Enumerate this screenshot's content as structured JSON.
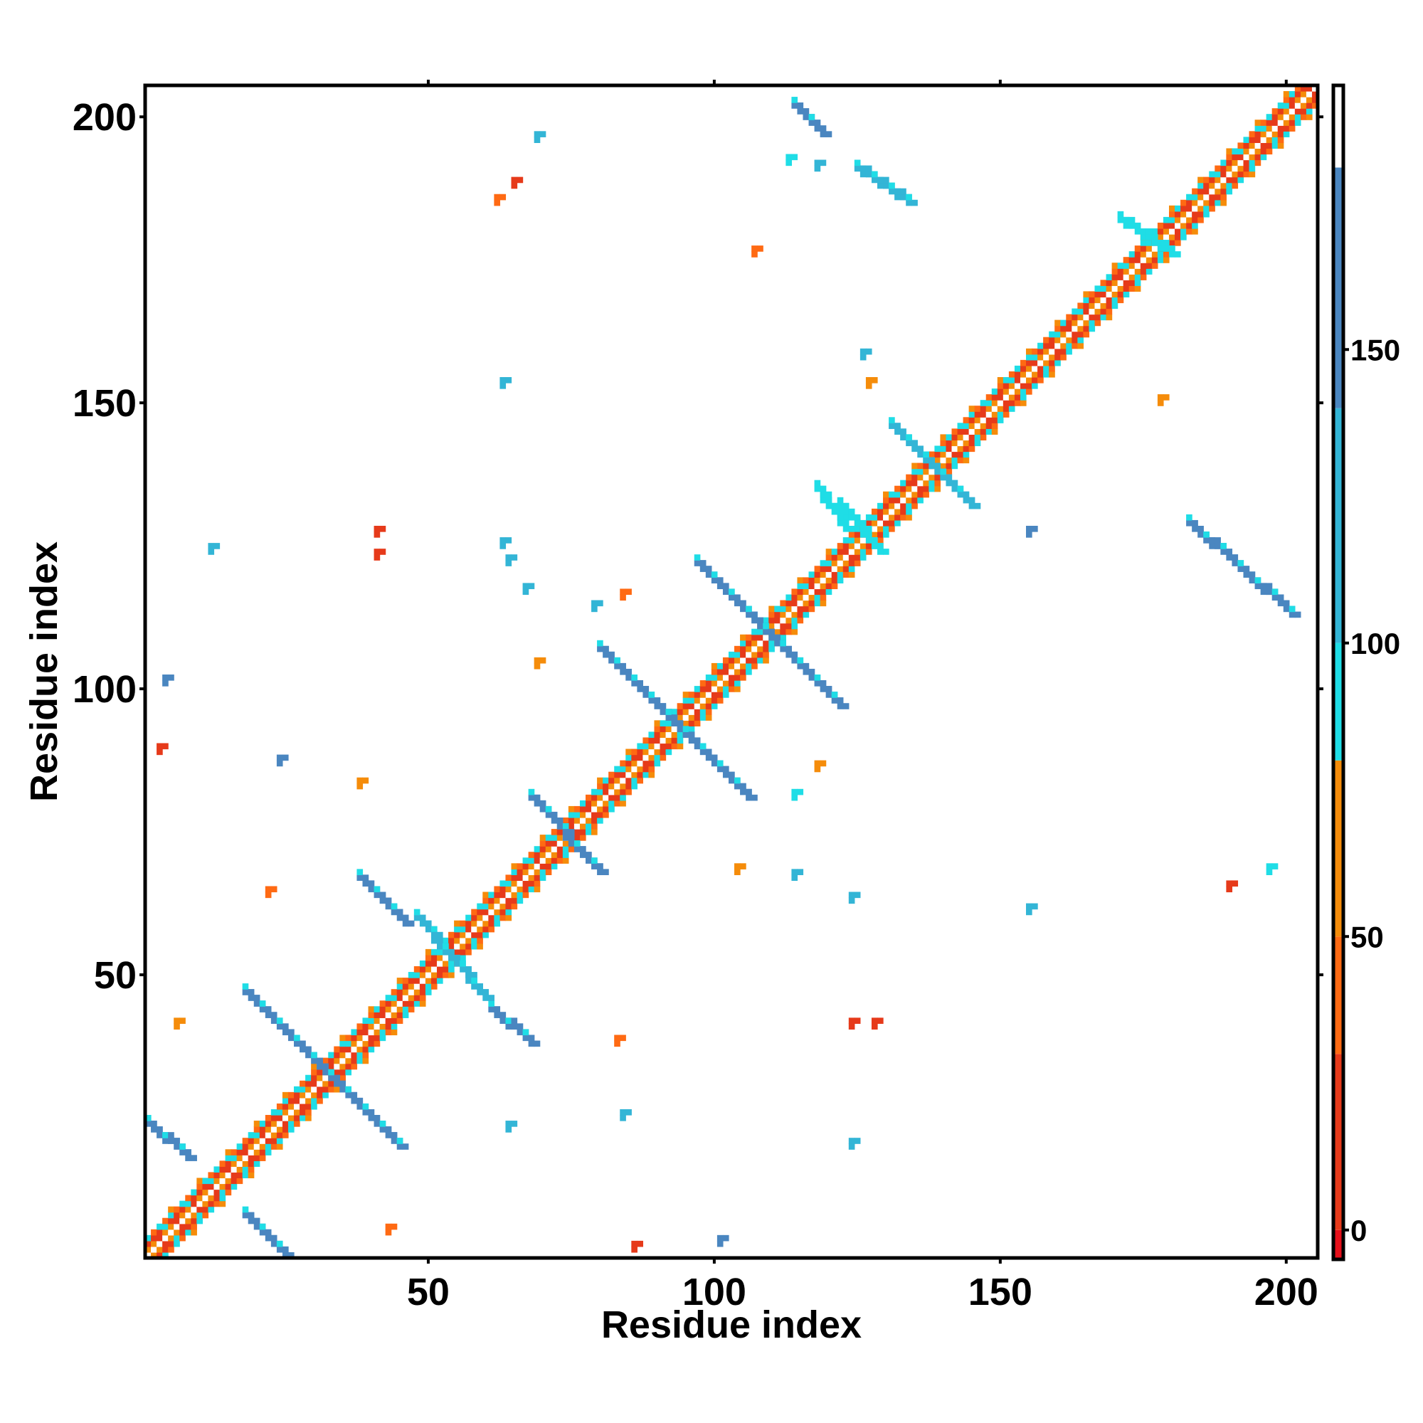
{
  "chart_data": {
    "type": "heatmap",
    "title": "",
    "xlabel": "Residue index",
    "ylabel": "Residue index",
    "xlim": [
      1,
      205
    ],
    "ylim": [
      1,
      205
    ],
    "x_ticks": [
      "50",
      "100",
      "150",
      "200"
    ],
    "y_ticks": [
      "50",
      "100",
      "150",
      "200"
    ],
    "colorbar": {
      "range": [
        -5,
        195
      ],
      "ticks": [
        "0",
        "50",
        "100",
        "150"
      ],
      "bands": [
        {
          "from": -5,
          "to": 0,
          "color": "#e6101a"
        },
        {
          "from": 0,
          "to": 30,
          "color": "#e63a1a"
        },
        {
          "from": 30,
          "to": 50,
          "color": "#ff6a13"
        },
        {
          "from": 50,
          "to": 80,
          "color": "#f58c0a"
        },
        {
          "from": 80,
          "to": 100,
          "color": "#1fdde6"
        },
        {
          "from": 100,
          "to": 140,
          "color": "#33b5d6"
        },
        {
          "from": 140,
          "to": 181,
          "color": "#4a86c0"
        },
        {
          "from": 181,
          "to": 195,
          "color": "#ffffff"
        }
      ]
    },
    "diagonal": {
      "from": 1,
      "to": 205
    },
    "segments": [
      {
        "x": [
          18,
          45
        ],
        "y": [
          47,
          20
        ],
        "value": 140
      },
      {
        "x": [
          1,
          8
        ],
        "y": [
          24,
          18
        ],
        "value": 140
      },
      {
        "x": [
          18,
          25
        ],
        "y": [
          8,
          1
        ],
        "value": 140
      },
      {
        "x": [
          38,
          46
        ],
        "y": [
          67,
          59
        ],
        "value": 140
      },
      {
        "x": [
          61,
          68
        ],
        "y": [
          44,
          38
        ],
        "value": 140
      },
      {
        "x": [
          48,
          60
        ],
        "y": [
          60,
          46
        ],
        "value": 115
      },
      {
        "x": [
          68,
          80
        ],
        "y": [
          81,
          68
        ],
        "value": 140
      },
      {
        "x": [
          80,
          106
        ],
        "y": [
          107,
          81
        ],
        "value": 140
      },
      {
        "x": [
          97,
          122
        ],
        "y": [
          122,
          97
        ],
        "value": 140
      },
      {
        "x": [
          131,
          145
        ],
        "y": [
          146,
          132
        ],
        "value": 115
      },
      {
        "x": [
          114,
          119
        ],
        "y": [
          202,
          197
        ],
        "value": 160
      },
      {
        "x": [
          125,
          134
        ],
        "y": [
          191,
          185
        ],
        "value": 110
      },
      {
        "x": [
          183,
          201
        ],
        "y": [
          129,
          113
        ],
        "value": 140
      },
      {
        "x": [
          118,
          123
        ],
        "y": [
          135,
          128
        ],
        "value": 90
      },
      {
        "x": [
          171,
          180
        ],
        "y": [
          182,
          176
        ],
        "value": 90
      },
      {
        "x": [
          122,
          129
        ],
        "y": [
          132,
          124
        ],
        "value": 90
      }
    ],
    "blobs": [
      {
        "x": 65,
        "y": 189,
        "value": 25
      },
      {
        "x": 62,
        "y": 186,
        "value": 40
      },
      {
        "x": 69,
        "y": 197,
        "value": 110
      },
      {
        "x": 113,
        "y": 193,
        "value": 95
      },
      {
        "x": 118,
        "y": 192,
        "value": 100
      },
      {
        "x": 107,
        "y": 177,
        "value": 45
      },
      {
        "x": 178,
        "y": 151,
        "value": 55
      },
      {
        "x": 63,
        "y": 154,
        "value": 130
      },
      {
        "x": 127,
        "y": 154,
        "value": 60
      },
      {
        "x": 12,
        "y": 125,
        "value": 110
      },
      {
        "x": 41,
        "y": 124,
        "value": 15
      },
      {
        "x": 63,
        "y": 126,
        "value": 100
      },
      {
        "x": 64,
        "y": 123,
        "value": 120
      },
      {
        "x": 67,
        "y": 118,
        "value": 105
      },
      {
        "x": 84,
        "y": 117,
        "value": 40
      },
      {
        "x": 79,
        "y": 115,
        "value": 100
      },
      {
        "x": 69,
        "y": 105,
        "value": 60
      },
      {
        "x": 4,
        "y": 102,
        "value": 140
      },
      {
        "x": 3,
        "y": 90,
        "value": 5
      },
      {
        "x": 24,
        "y": 88,
        "value": 140
      },
      {
        "x": 38,
        "y": 84,
        "value": 55
      },
      {
        "x": 118,
        "y": 87,
        "value": 50
      },
      {
        "x": 114,
        "y": 82,
        "value": 95
      },
      {
        "x": 22,
        "y": 65,
        "value": 40
      },
      {
        "x": 114,
        "y": 68,
        "value": 100
      },
      {
        "x": 124,
        "y": 64,
        "value": 120
      },
      {
        "x": 104,
        "y": 69,
        "value": 60
      },
      {
        "x": 155,
        "y": 62,
        "value": 115
      },
      {
        "x": 190,
        "y": 66,
        "value": 20
      },
      {
        "x": 197,
        "y": 69,
        "value": 95
      },
      {
        "x": 6,
        "y": 42,
        "value": 55
      },
      {
        "x": 83,
        "y": 39,
        "value": 45
      },
      {
        "x": 124,
        "y": 42,
        "value": 15
      },
      {
        "x": 128,
        "y": 42,
        "value": 15
      },
      {
        "x": 64,
        "y": 24,
        "value": 105
      },
      {
        "x": 84,
        "y": 26,
        "value": 130
      },
      {
        "x": 124,
        "y": 21,
        "value": 110
      },
      {
        "x": 43,
        "y": 6,
        "value": 45
      },
      {
        "x": 86,
        "y": 3,
        "value": 10
      },
      {
        "x": 101,
        "y": 4,
        "value": 140
      },
      {
        "x": 155,
        "y": 128,
        "value": 140
      },
      {
        "x": 126,
        "y": 159,
        "value": 100
      },
      {
        "x": 41,
        "y": 128,
        "value": 10
      }
    ]
  }
}
